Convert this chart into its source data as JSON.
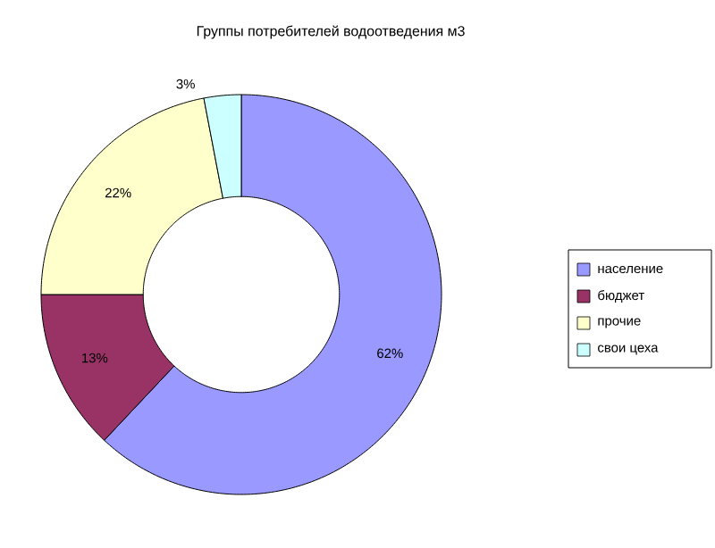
{
  "chart_data": {
    "type": "donut",
    "title": "Группы потребителей водоотведения м3",
    "categories": [
      "население",
      "бюджет",
      "прочие",
      "свои цеха"
    ],
    "values": [
      62,
      13,
      22,
      3
    ],
    "value_labels": [
      "62%",
      "13%",
      "22%",
      "3%"
    ],
    "colors": [
      "#9999ff",
      "#993366",
      "#ffffcc",
      "#ccffff"
    ],
    "legend": "right"
  }
}
